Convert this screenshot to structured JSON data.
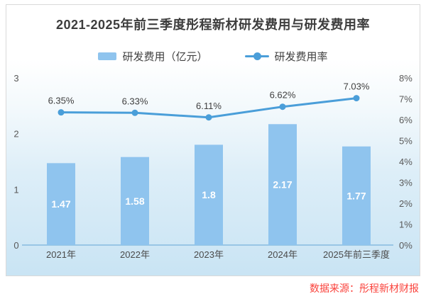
{
  "chart": {
    "title": "2021-2025年前三季度彤程新材研发费用与研发费用率",
    "legend": [
      {
        "label": "研发费用（亿元）",
        "marker": "bar-swatch"
      },
      {
        "label": "研发费用率",
        "marker": "line-dot-swatch"
      }
    ],
    "source_note": "数据来源：彤程新材财报"
  },
  "colors": {
    "bar": "#8FC4EE",
    "line": "#4A9ED9",
    "bar_label_text": "#FFFFFF",
    "line_label_text": "#404040",
    "axis_text": "#595959",
    "category_text": "#4A4A4A",
    "title_text": "#3D3D3D",
    "baseline": "#85BCE0",
    "card_border": "#D9D9D9",
    "source_text": "#FA423B",
    "background_top": "#FFFFFF",
    "background_bottom": "#C9E4F4"
  },
  "chart_data": {
    "type": "bar+line combo",
    "title": "2021-2025年前三季度彤程新材研发费用与研发费用率",
    "categories": [
      "2021年",
      "2022年",
      "2023年",
      "2024年",
      "2025年前三季度"
    ],
    "series": [
      {
        "name": "研发费用（亿元）",
        "type": "bar",
        "axis": "left",
        "values": [
          1.47,
          1.58,
          1.8,
          2.17,
          1.77
        ],
        "data_labels": [
          "1.47",
          "1.58",
          "1.8",
          "2.17",
          "1.77"
        ]
      },
      {
        "name": "研发费用率",
        "type": "line",
        "axis": "right",
        "values": [
          6.35,
          6.33,
          6.11,
          6.62,
          7.03
        ],
        "data_labels": [
          "6.35%",
          "6.33%",
          "6.11%",
          "6.62%",
          "7.03%"
        ]
      }
    ],
    "left_axis": {
      "min": 0,
      "max": 3,
      "tick_values": [
        0,
        1,
        2,
        3
      ],
      "tick_labels": [
        "0",
        "1",
        "2",
        "3"
      ]
    },
    "right_axis": {
      "min": 0,
      "max": 8,
      "tick_values": [
        0,
        1,
        2,
        3,
        4,
        5,
        6,
        7,
        8
      ],
      "tick_labels": [
        "0%",
        "1%",
        "2%",
        "3%",
        "4%",
        "5%",
        "6%",
        "7%",
        "8%"
      ]
    },
    "grid": false,
    "legend_position": "top",
    "xlabel": "",
    "ylabel_left": "研发费用（亿元）",
    "ylabel_right": "研发费用率"
  }
}
